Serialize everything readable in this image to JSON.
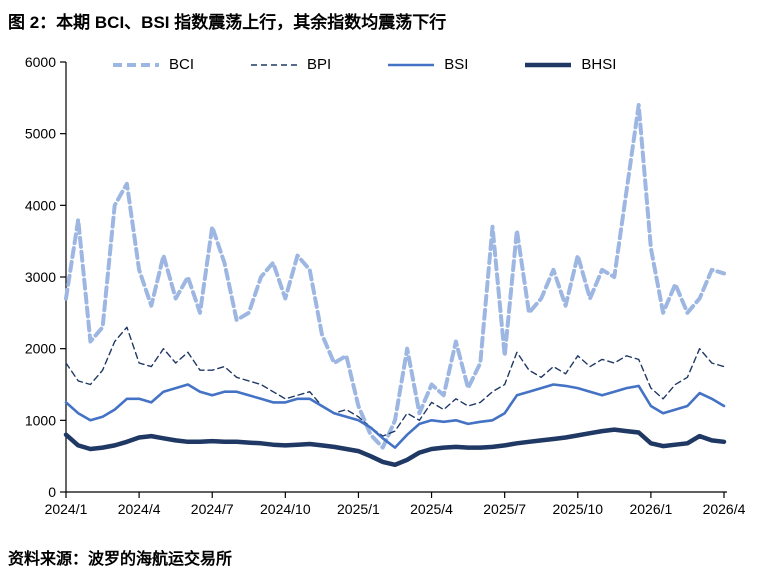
{
  "title": "图 2：本期 BCI、BSI 指数震荡上行，其余指数均震荡下行",
  "source": "资料来源：波罗的海航运交易所",
  "chart_data": {
    "type": "line",
    "title": "图 2：本期 BCI、BSI 指数震荡上行，其余指数均震荡下行",
    "xlabel": "",
    "ylabel": "",
    "ylim": [
      0,
      6000
    ],
    "yticks": [
      0,
      1000,
      2000,
      3000,
      4000,
      5000,
      6000
    ],
    "grid": false,
    "legend_position": "top",
    "x_unit": "months since 2024/1",
    "x_step": 0.5,
    "x_max": 27,
    "xticks": [
      {
        "label": "2024/1",
        "month": 0
      },
      {
        "label": "2024/4",
        "month": 3
      },
      {
        "label": "2024/7",
        "month": 6
      },
      {
        "label": "2024/10",
        "month": 9
      },
      {
        "label": "2025/1",
        "month": 12
      },
      {
        "label": "2025/4",
        "month": 15
      },
      {
        "label": "2025/7",
        "month": 18
      },
      {
        "label": "2025/10",
        "month": 21
      },
      {
        "label": "2026/1",
        "month": 24
      },
      {
        "label": "2026/4",
        "month": 27
      }
    ],
    "series": [
      {
        "name": "BCI",
        "color": "#9DB7E2",
        "width": 4,
        "dash": "9 5",
        "values": [
          2700,
          3800,
          2100,
          2300,
          4000,
          4300,
          3100,
          2600,
          3300,
          2700,
          3000,
          2500,
          3700,
          3200,
          2400,
          2500,
          3000,
          3200,
          2700,
          3300,
          3100,
          2200,
          1800,
          1900,
          1200,
          800,
          620,
          1000,
          2000,
          1100,
          1500,
          1350,
          2100,
          1450,
          1800,
          3700,
          1900,
          3650,
          2500,
          2700,
          3100,
          2600,
          3300,
          2700,
          3100,
          3000,
          4200,
          5400,
          3400,
          2500,
          2900,
          2500,
          2700,
          3100,
          3050
        ]
      },
      {
        "name": "BPI",
        "color": "#1F3864",
        "width": 1.4,
        "dash": "6 4",
        "values": [
          1800,
          1550,
          1500,
          1700,
          2100,
          2300,
          1800,
          1750,
          2000,
          1800,
          1950,
          1700,
          1700,
          1750,
          1600,
          1550,
          1500,
          1400,
          1300,
          1350,
          1400,
          1200,
          1100,
          1150,
          1050,
          900,
          780,
          850,
          1100,
          1000,
          1250,
          1150,
          1300,
          1200,
          1250,
          1400,
          1500,
          1950,
          1700,
          1600,
          1750,
          1650,
          1900,
          1750,
          1850,
          1800,
          1900,
          1850,
          1450,
          1300,
          1500,
          1600,
          2000,
          1800,
          1750
        ]
      },
      {
        "name": "BSI",
        "color": "#4472C4",
        "width": 2.6,
        "dash": "",
        "values": [
          1250,
          1100,
          1000,
          1050,
          1150,
          1300,
          1300,
          1250,
          1400,
          1450,
          1500,
          1400,
          1350,
          1400,
          1400,
          1350,
          1300,
          1250,
          1250,
          1300,
          1300,
          1200,
          1100,
          1050,
          1000,
          900,
          750,
          620,
          800,
          950,
          1000,
          980,
          1000,
          950,
          980,
          1000,
          1100,
          1350,
          1400,
          1450,
          1500,
          1480,
          1450,
          1400,
          1350,
          1400,
          1450,
          1480,
          1200,
          1100,
          1150,
          1200,
          1380,
          1300,
          1200
        ]
      },
      {
        "name": "BHSI",
        "color": "#1F3864",
        "width": 4.5,
        "dash": "",
        "values": [
          800,
          650,
          600,
          620,
          650,
          700,
          760,
          780,
          750,
          720,
          700,
          700,
          710,
          700,
          700,
          690,
          680,
          660,
          650,
          660,
          670,
          650,
          630,
          600,
          570,
          500,
          420,
          380,
          450,
          550,
          600,
          620,
          630,
          620,
          620,
          630,
          650,
          680,
          700,
          720,
          740,
          760,
          790,
          820,
          850,
          870,
          850,
          830,
          680,
          640,
          660,
          680,
          780,
          720,
          700
        ]
      }
    ]
  }
}
